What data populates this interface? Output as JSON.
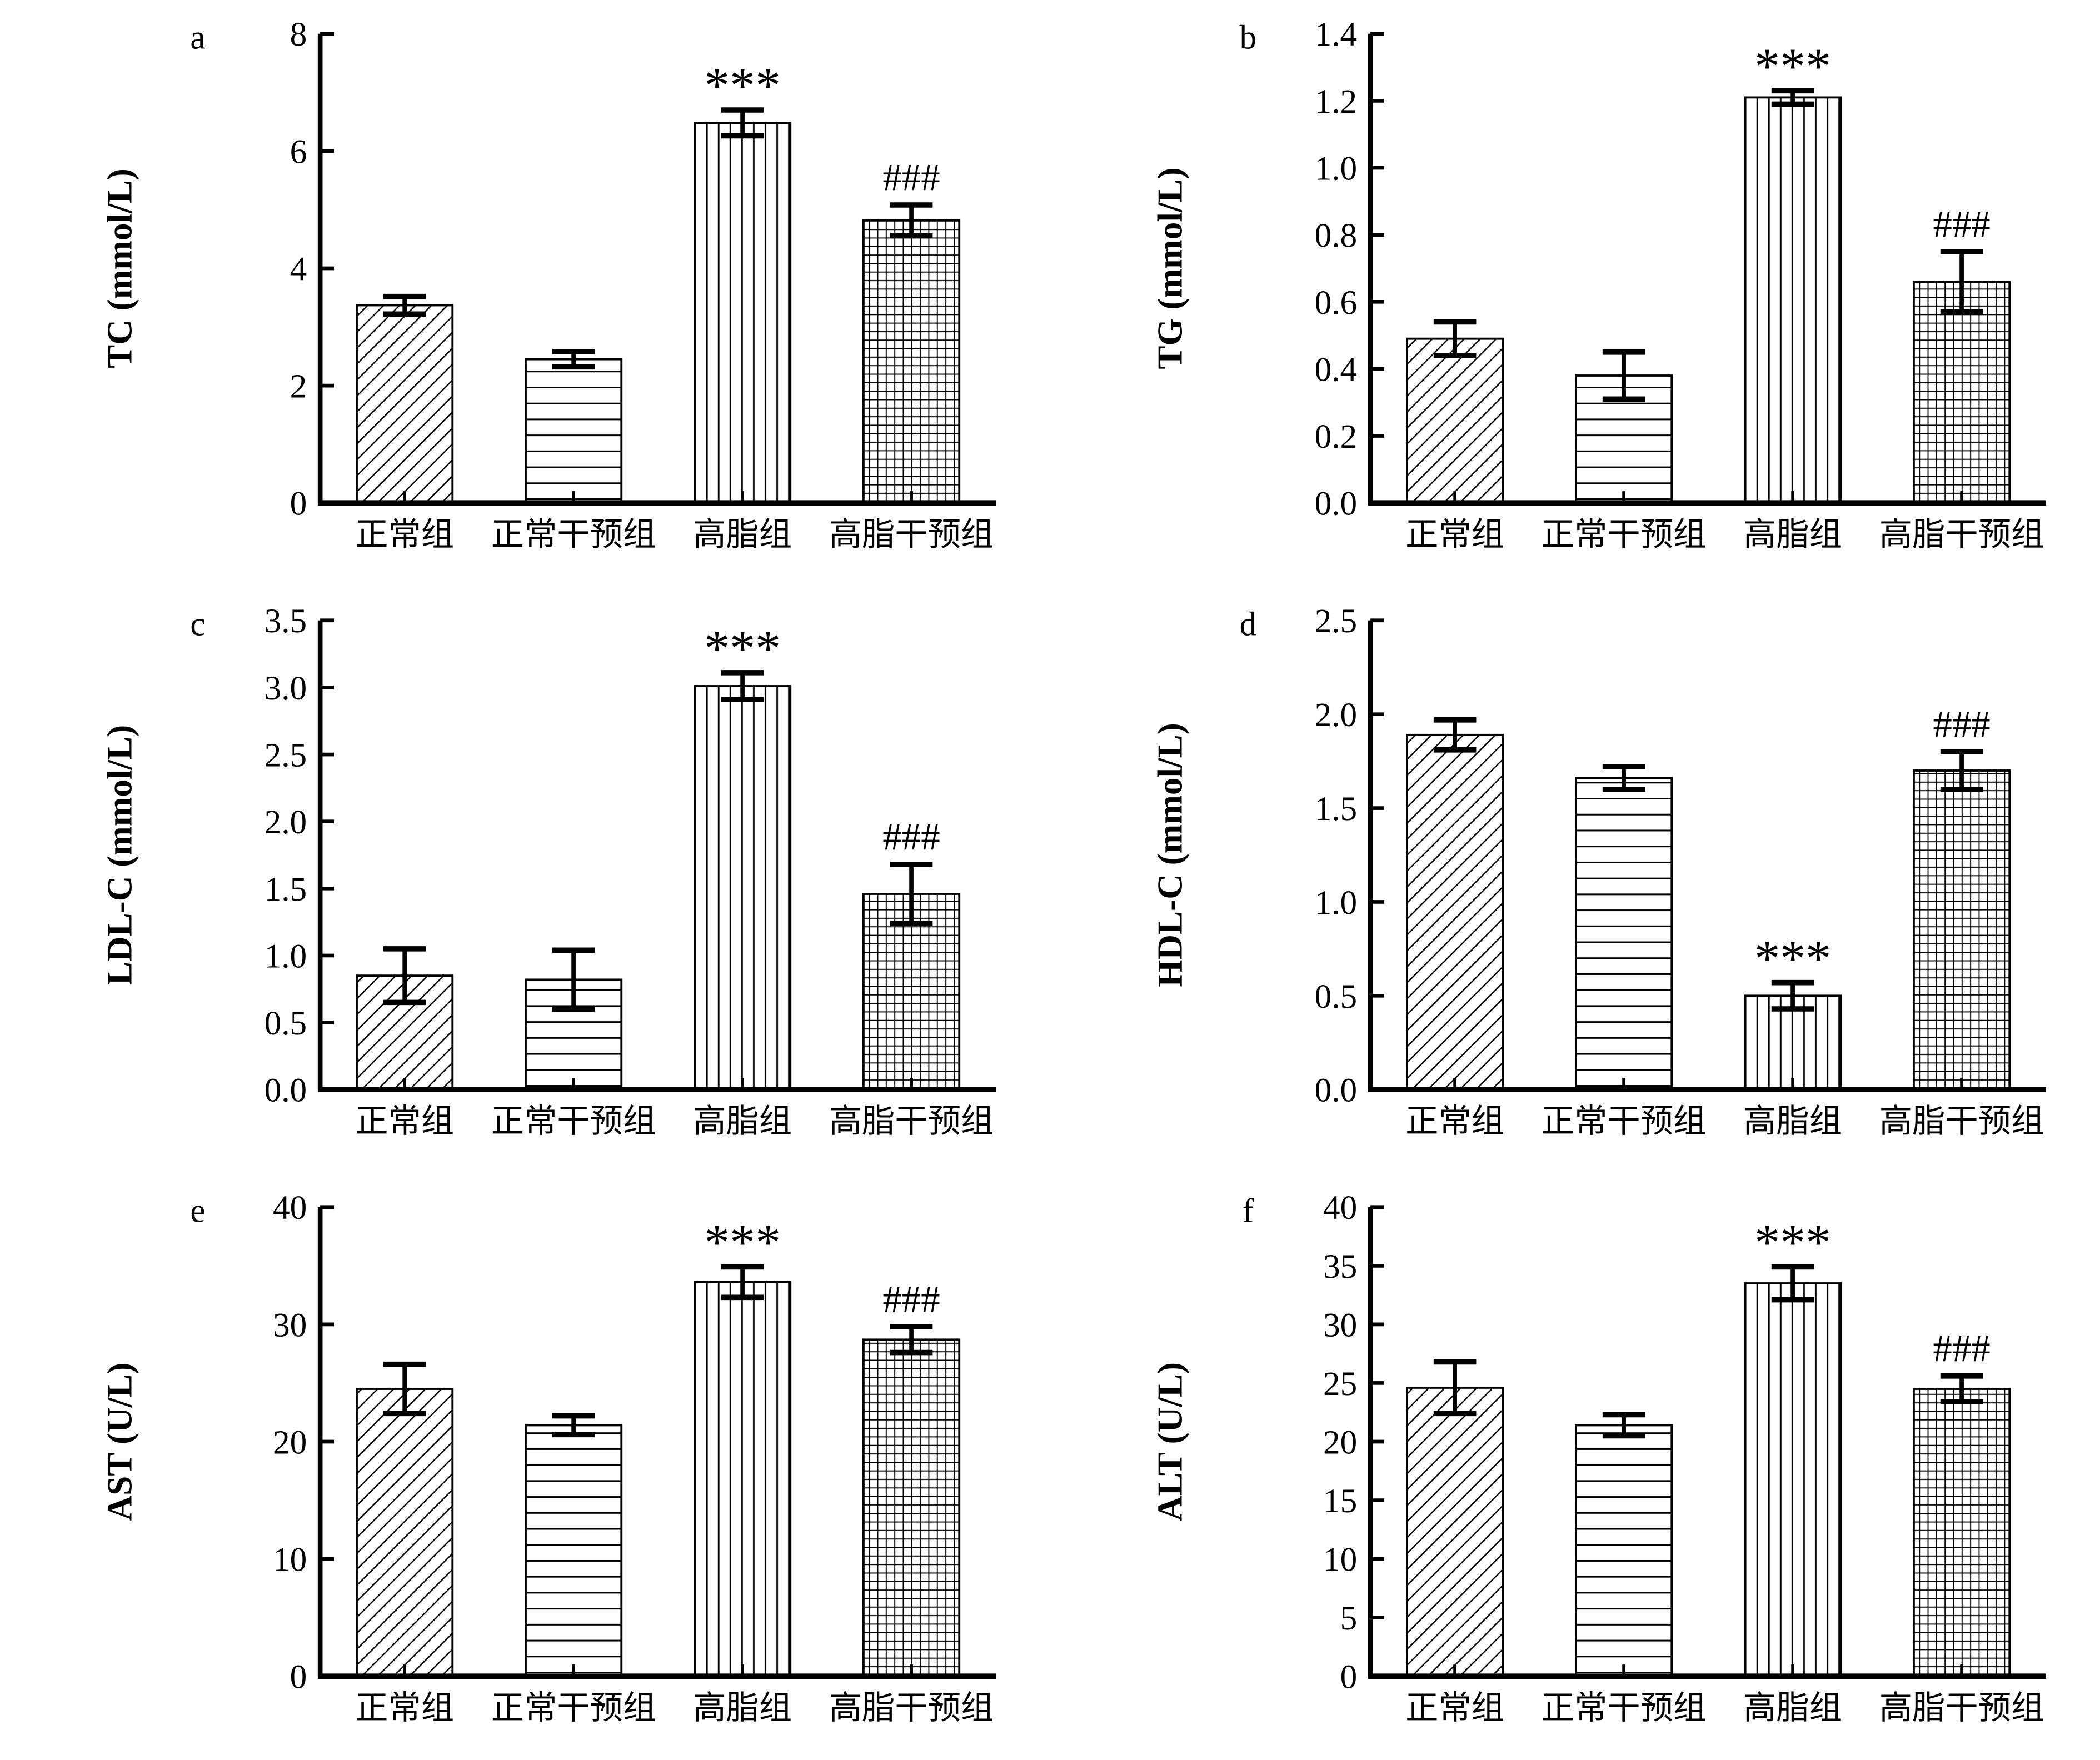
{
  "figure": {
    "background": "#ffffff",
    "ink": "#000000",
    "groups": [
      "正常组",
      "正常干预组",
      "高脂组",
      "高脂干预组"
    ],
    "significance_marks": {
      "vs_normal": "***",
      "vs_high_fat": "###"
    }
  },
  "chart_data": [
    {
      "type": "bar",
      "panel": "a",
      "ylabel": "TC (mmol/L)",
      "categories": [
        "正常组",
        "正常干预组",
        "高脂组",
        "高脂干预组"
      ],
      "values": [
        3.37,
        2.45,
        6.48,
        4.82
      ],
      "errors": [
        0.15,
        0.13,
        0.22,
        0.26
      ],
      "annotations": [
        "",
        "",
        "***",
        "###"
      ],
      "hatches": [
        "diagonal",
        "horizontal",
        "vertical",
        "grid"
      ],
      "ylim": [
        0,
        8
      ],
      "yticks": [
        0,
        2,
        4,
        6,
        8
      ],
      "ytick_labels": [
        "0",
        "2",
        "4",
        "6",
        "8"
      ],
      "grid": false,
      "legend": "none"
    },
    {
      "type": "bar",
      "panel": "b",
      "ylabel": "TG (mmol/L)",
      "categories": [
        "正常组",
        "正常干预组",
        "高脂组",
        "高脂干预组"
      ],
      "values": [
        0.49,
        0.38,
        1.21,
        0.66
      ],
      "errors": [
        0.05,
        0.07,
        0.02,
        0.09
      ],
      "annotations": [
        "",
        "",
        "***",
        "###"
      ],
      "hatches": [
        "diagonal",
        "horizontal",
        "vertical",
        "grid"
      ],
      "ylim": [
        0,
        1.4
      ],
      "yticks": [
        0,
        0.2,
        0.4,
        0.6,
        0.8,
        1.0,
        1.2,
        1.4
      ],
      "ytick_labels": [
        "0.0",
        "0.2",
        "0.4",
        "0.6",
        "0.8",
        "1.0",
        "1.2",
        "1.4"
      ],
      "grid": false,
      "legend": "none"
    },
    {
      "type": "bar",
      "panel": "c",
      "ylabel": "LDL-C (mmol/L)",
      "categories": [
        "正常组",
        "正常干预组",
        "高脂组",
        "高脂干预组"
      ],
      "values": [
        0.85,
        0.82,
        3.01,
        1.46
      ],
      "errors": [
        0.2,
        0.22,
        0.1,
        0.22
      ],
      "annotations": [
        "",
        "",
        "***",
        "###"
      ],
      "hatches": [
        "diagonal",
        "horizontal",
        "vertical",
        "grid"
      ],
      "ylim": [
        0,
        3.5
      ],
      "yticks": [
        0,
        0.5,
        1.0,
        1.5,
        2.0,
        2.5,
        3.0,
        3.5
      ],
      "ytick_labels": [
        "0.0",
        "0.5",
        "1.0",
        "1.5",
        "2.0",
        "2.5",
        "3.0",
        "3.5"
      ],
      "grid": false,
      "legend": "none"
    },
    {
      "type": "bar",
      "panel": "d",
      "ylabel": "HDL-C (mmol/L)",
      "categories": [
        "正常组",
        "正常干预组",
        "高脂组",
        "高脂干预组"
      ],
      "values": [
        1.89,
        1.66,
        0.5,
        1.7
      ],
      "errors": [
        0.08,
        0.06,
        0.07,
        0.1
      ],
      "annotations": [
        "",
        "",
        "***",
        "###"
      ],
      "hatches": [
        "diagonal",
        "horizontal",
        "vertical",
        "grid"
      ],
      "ylim": [
        0,
        2.5
      ],
      "yticks": [
        0,
        0.5,
        1.0,
        1.5,
        2.0,
        2.5
      ],
      "ytick_labels": [
        "0.0",
        "0.5",
        "1.0",
        "1.5",
        "2.0",
        "2.5"
      ],
      "grid": false,
      "legend": "none"
    },
    {
      "type": "bar",
      "panel": "e",
      "ylabel": "AST (U/L)",
      "categories": [
        "正常组",
        "正常干预组",
        "高脂组",
        "高脂干预组"
      ],
      "values": [
        24.5,
        21.4,
        33.6,
        28.7
      ],
      "errors": [
        2.1,
        0.8,
        1.3,
        1.1
      ],
      "annotations": [
        "",
        "",
        "***",
        "###"
      ],
      "hatches": [
        "diagonal",
        "horizontal",
        "vertical",
        "grid"
      ],
      "ylim": [
        0,
        40
      ],
      "yticks": [
        0,
        10,
        20,
        30,
        40
      ],
      "ytick_labels": [
        "0",
        "10",
        "20",
        "30",
        "40"
      ],
      "grid": false,
      "legend": "none"
    },
    {
      "type": "bar",
      "panel": "f",
      "ylabel": "ALT (U/L)",
      "categories": [
        "正常组",
        "正常干预组",
        "高脂组",
        "高脂干预组"
      ],
      "values": [
        24.6,
        21.4,
        33.5,
        24.5
      ],
      "errors": [
        2.2,
        0.9,
        1.4,
        1.1
      ],
      "annotations": [
        "",
        "",
        "***",
        "###"
      ],
      "hatches": [
        "diagonal",
        "horizontal",
        "vertical",
        "grid"
      ],
      "ylim": [
        0,
        40
      ],
      "yticks": [
        0,
        5,
        10,
        15,
        20,
        25,
        30,
        35,
        40
      ],
      "ytick_labels": [
        "0",
        "5",
        "10",
        "15",
        "20",
        "25",
        "30",
        "35",
        "40"
      ],
      "grid": false,
      "legend": "none"
    }
  ]
}
